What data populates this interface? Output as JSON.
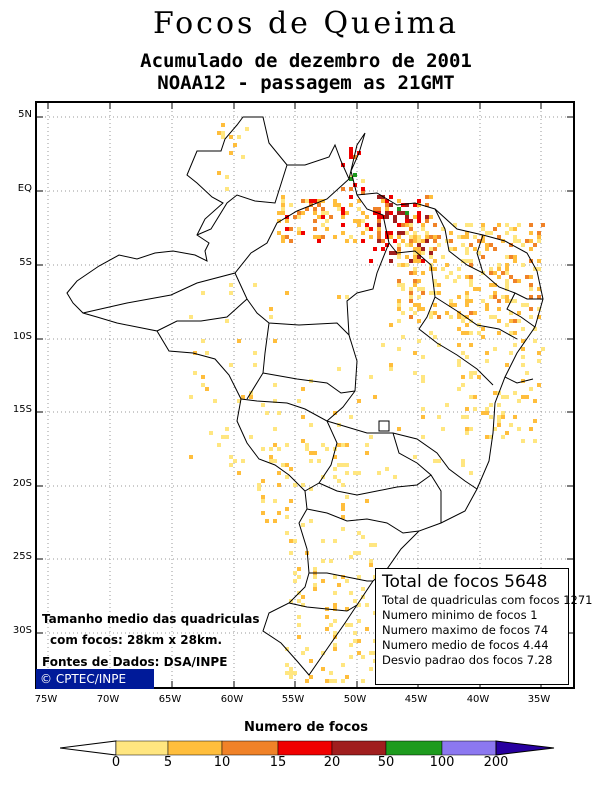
{
  "header": {
    "title": "Focos de Queima",
    "subtitle1": "Acumulado de dezembro de 2001",
    "subtitle2": "NOAA12 - passagem as 21GMT"
  },
  "axes": {
    "lat_labels": [
      "5N",
      "EQ",
      "5S",
      "10S",
      "15S",
      "20S",
      "25S",
      "30S"
    ],
    "lon_labels": [
      "75W",
      "70W",
      "65W",
      "60W",
      "55W",
      "50W",
      "45W",
      "40W",
      "35W"
    ]
  },
  "stats": {
    "total": "Total de focos 5648",
    "quadriculas": "Total de quadriculas com focos 1271",
    "minimo": "Numero minimo de focos 1",
    "maximo": "Numero maximo de focos 74",
    "medio": "Numero medio de focos 4.44",
    "desvio": "Desvio padrao dos focos 7.28"
  },
  "notes": {
    "tamanho1": "Tamanho medio das quadriculas",
    "tamanho2": "com focos: 28km x 28km.",
    "fontes": "Fontes de Dados: DSA/INPE",
    "logo": "© CPTEC/INPE"
  },
  "legend": {
    "title": "Numero de focos",
    "ticks": [
      "0",
      "5",
      "10",
      "15",
      "20",
      "50",
      "100",
      "200"
    ],
    "colors": [
      "#ffffff",
      "#ffe680",
      "#ffbe3c",
      "#f08228",
      "#f00000",
      "#a01e1e",
      "#1e9b1e",
      "#8c78f0",
      "#2800a0"
    ]
  },
  "colors": {
    "bin1": "#ffe680",
    "bin2": "#ffbe3c",
    "bin3": "#f08228",
    "bin4": "#f00000",
    "bin5": "#a01e1e",
    "bin6": "#1e9b1e",
    "grid": "#999999"
  }
}
